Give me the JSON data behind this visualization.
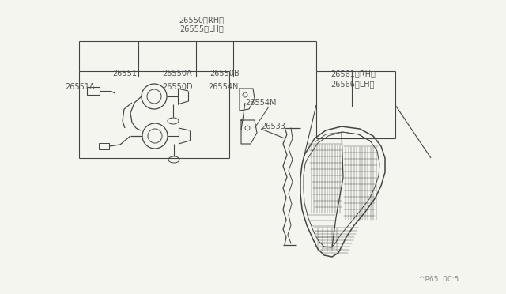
{
  "background_color": "#f5f5f0",
  "line_color": "#444444",
  "text_color": "#555555",
  "font_size": 7.0,
  "diagram_code": "^P65  00:5",
  "top_label_line1": "26550〈RH〉",
  "top_label_line2": "26555〈LH〉",
  "label_26551": "26551",
  "label_26551A": "26551A",
  "label_26550A": "26550A",
  "label_26550B": "26550B",
  "label_26550D": "26550D",
  "label_26554N": "26554N",
  "label_26554M": "26554M",
  "label_26561": "26561〈RH〉",
  "label_26566": "26566〈LH〉",
  "label_26533": "26533"
}
